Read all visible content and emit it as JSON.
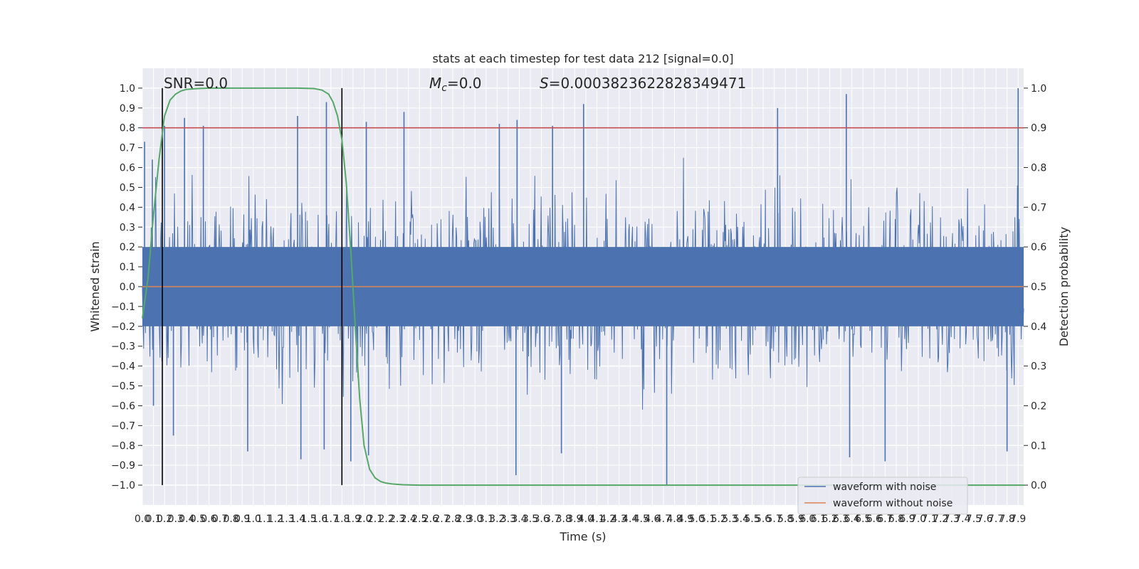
{
  "chart_data": {
    "type": "line",
    "title": "stats at each timestep for test data 212 [signal=0.0]",
    "xlabel": "Time (s)",
    "ylabel_left": "Whitened strain",
    "ylabel_right": "Detection probability",
    "xlim": [
      0.0,
      7.95
    ],
    "ylim_left": [
      -1.1,
      1.1
    ],
    "ylim_right": [
      -0.05,
      1.05
    ],
    "xticks": [
      0.0,
      0.1,
      0.2,
      0.3,
      0.4,
      0.5,
      0.6,
      0.7,
      0.8,
      0.9,
      1.0,
      1.1,
      1.2,
      1.3,
      1.4,
      1.5,
      1.6,
      1.7,
      1.8,
      1.9,
      2.0,
      2.1,
      2.2,
      2.3,
      2.4,
      2.5,
      2.6,
      2.7,
      2.8,
      2.9,
      3.0,
      3.1,
      3.2,
      3.3,
      3.4,
      3.5,
      3.6,
      3.7,
      3.8,
      3.9,
      4.0,
      4.1,
      4.2,
      4.3,
      4.4,
      4.5,
      4.6,
      4.7,
      4.8,
      4.9,
      5.0,
      5.1,
      5.2,
      5.3,
      5.4,
      5.5,
      5.6,
      5.7,
      5.8,
      5.9,
      6.0,
      6.1,
      6.2,
      6.3,
      6.4,
      6.5,
      6.6,
      6.7,
      6.8,
      6.9,
      7.0,
      7.1,
      7.2,
      7.3,
      7.4,
      7.5,
      7.6,
      7.7,
      7.8,
      7.9
    ],
    "xtick_labels": [
      "0.0",
      "0.1",
      "0.2",
      "0.3",
      "0.4",
      "0.5",
      "0.6",
      "0.7",
      "0.8",
      "0.9",
      "1.0",
      "1.1",
      "1.2",
      "1.3",
      "1.4",
      "1.5",
      "1.6",
      "1.7",
      "1.8",
      "1.9",
      "2.0",
      "2.1",
      "2.2",
      "2.3",
      "2.4",
      "2.5",
      "2.6",
      "2.7",
      "2.8",
      "2.9",
      "3.0",
      "3.1",
      "3.2",
      "3.3",
      "3.4",
      "3.5",
      "3.6",
      "3.7",
      "3.8",
      "3.9",
      "4.0",
      "4.1",
      "4.2",
      "4.3",
      "4.4",
      "4.5",
      "4.6",
      "4.7",
      "4.8",
      "4.9",
      "5.0",
      "5.1",
      "5.2",
      "5.3",
      "5.4",
      "5.5",
      "5.6",
      "5.7",
      "5.8",
      "5.9",
      "6.0",
      "6.1",
      "6.2",
      "6.3",
      "6.4",
      "6.5",
      "6.6",
      "6.7",
      "6.8",
      "6.9",
      "7.0",
      "7.1",
      "7.2",
      "7.3",
      "7.4",
      "7.5",
      "7.6",
      "7.7",
      "7.8",
      "7.9"
    ],
    "yticks_left": [
      -1.0,
      -0.9,
      -0.8,
      -0.7,
      -0.6,
      -0.5,
      -0.4,
      -0.3,
      -0.2,
      -0.1,
      0.0,
      0.1,
      0.2,
      0.3,
      0.4,
      0.5,
      0.6,
      0.7,
      0.8,
      0.9,
      1.0
    ],
    "ytick_labels_left": [
      "−1.0",
      "−0.9",
      "−0.8",
      "−0.7",
      "−0.6",
      "−0.5",
      "−0.4",
      "−0.3",
      "−0.2",
      "−0.1",
      "0.0",
      "0.1",
      "0.2",
      "0.3",
      "0.4",
      "0.5",
      "0.6",
      "0.7",
      "0.8",
      "0.9",
      "1.0"
    ],
    "yticks_right": [
      0.0,
      0.1,
      0.2,
      0.3,
      0.4,
      0.5,
      0.6,
      0.7,
      0.8,
      0.9,
      1.0
    ],
    "ytick_labels_right": [
      "0.0",
      "0.1",
      "0.2",
      "0.3",
      "0.4",
      "0.5",
      "0.6",
      "0.7",
      "0.8",
      "0.9",
      "1.0"
    ],
    "grid": true,
    "legend_position": "lower-right",
    "series": [
      {
        "name": "waveform with noise",
        "axis": "left",
        "color": "#4c72b0",
        "style": "dense-noise",
        "noise_envelope": 0.38,
        "sample_count": 1400,
        "peak_values": [
          {
            "x": 0.02,
            "y": 0.73
          },
          {
            "x": 0.09,
            "y": 0.64
          },
          {
            "x": 0.2,
            "y": 0.81
          },
          {
            "x": 0.38,
            "y": 0.85
          },
          {
            "x": 0.55,
            "y": 0.81
          },
          {
            "x": 1.4,
            "y": 0.86
          },
          {
            "x": 1.66,
            "y": 0.93
          },
          {
            "x": 2.02,
            "y": 0.83
          },
          {
            "x": 2.36,
            "y": 0.88
          },
          {
            "x": 3.22,
            "y": 0.82
          },
          {
            "x": 3.38,
            "y": 0.84
          },
          {
            "x": 3.7,
            "y": 0.81
          },
          {
            "x": 3.98,
            "y": 0.92
          },
          {
            "x": 5.73,
            "y": 0.9
          },
          {
            "x": 6.35,
            "y": 0.97
          },
          {
            "x": 7.9,
            "y": 1.0
          },
          {
            "x": 0.1,
            "y": -0.6
          },
          {
            "x": 0.28,
            "y": -0.75
          },
          {
            "x": 0.95,
            "y": -0.83
          },
          {
            "x": 1.43,
            "y": -0.87
          },
          {
            "x": 1.64,
            "y": -0.82
          },
          {
            "x": 1.88,
            "y": -0.88
          },
          {
            "x": 2.04,
            "y": -0.85
          },
          {
            "x": 3.37,
            "y": -0.95
          },
          {
            "x": 3.78,
            "y": -0.84
          },
          {
            "x": 4.73,
            "y": -1.0
          },
          {
            "x": 6.38,
            "y": -0.86
          },
          {
            "x": 6.7,
            "y": -0.88
          },
          {
            "x": 7.8,
            "y": -0.83
          }
        ]
      },
      {
        "name": "waveform without noise",
        "axis": "left",
        "color": "#dd8452",
        "x": [
          0.0,
          7.95
        ],
        "y": [
          0.0,
          0.0
        ]
      },
      {
        "name": "",
        "axis": "right",
        "color": "#55a868",
        "x": [
          0.0,
          0.05,
          0.1,
          0.15,
          0.2,
          0.25,
          0.3,
          0.35,
          0.4,
          0.5,
          0.6,
          0.8,
          1.0,
          1.2,
          1.4,
          1.55,
          1.62,
          1.68,
          1.72,
          1.76,
          1.8,
          1.84,
          1.88,
          1.92,
          1.96,
          2.0,
          2.05,
          2.1,
          2.15,
          2.2,
          2.25,
          2.3,
          2.35,
          2.4,
          2.5,
          3.0,
          4.0,
          5.0,
          6.0,
          7.0,
          7.95
        ],
        "y": [
          0.42,
          0.52,
          0.68,
          0.82,
          0.93,
          0.97,
          0.985,
          0.993,
          0.997,
          0.999,
          1.0,
          1.0,
          1.0,
          1.0,
          1.0,
          0.999,
          0.995,
          0.985,
          0.965,
          0.93,
          0.87,
          0.76,
          0.59,
          0.4,
          0.22,
          0.1,
          0.04,
          0.018,
          0.009,
          0.005,
          0.003,
          0.002,
          0.001,
          0.0005,
          0.0,
          0.0,
          0.0,
          0.0,
          0.0,
          0.0,
          0.0
        ]
      }
    ],
    "threshold_line": {
      "axis": "right",
      "value": 0.9,
      "color": "#c44e52"
    },
    "vertical_lines": [
      {
        "x": 0.18,
        "color": "#000000"
      },
      {
        "x": 1.8,
        "color": "#000000"
      }
    ],
    "annotations": {
      "snr": "SNR=0.0",
      "mc_symbol": "M",
      "mc_subscript": "c",
      "mc_value": "=0.0",
      "s_symbol": "S",
      "s_value": "=0.0003823622828349471"
    }
  }
}
